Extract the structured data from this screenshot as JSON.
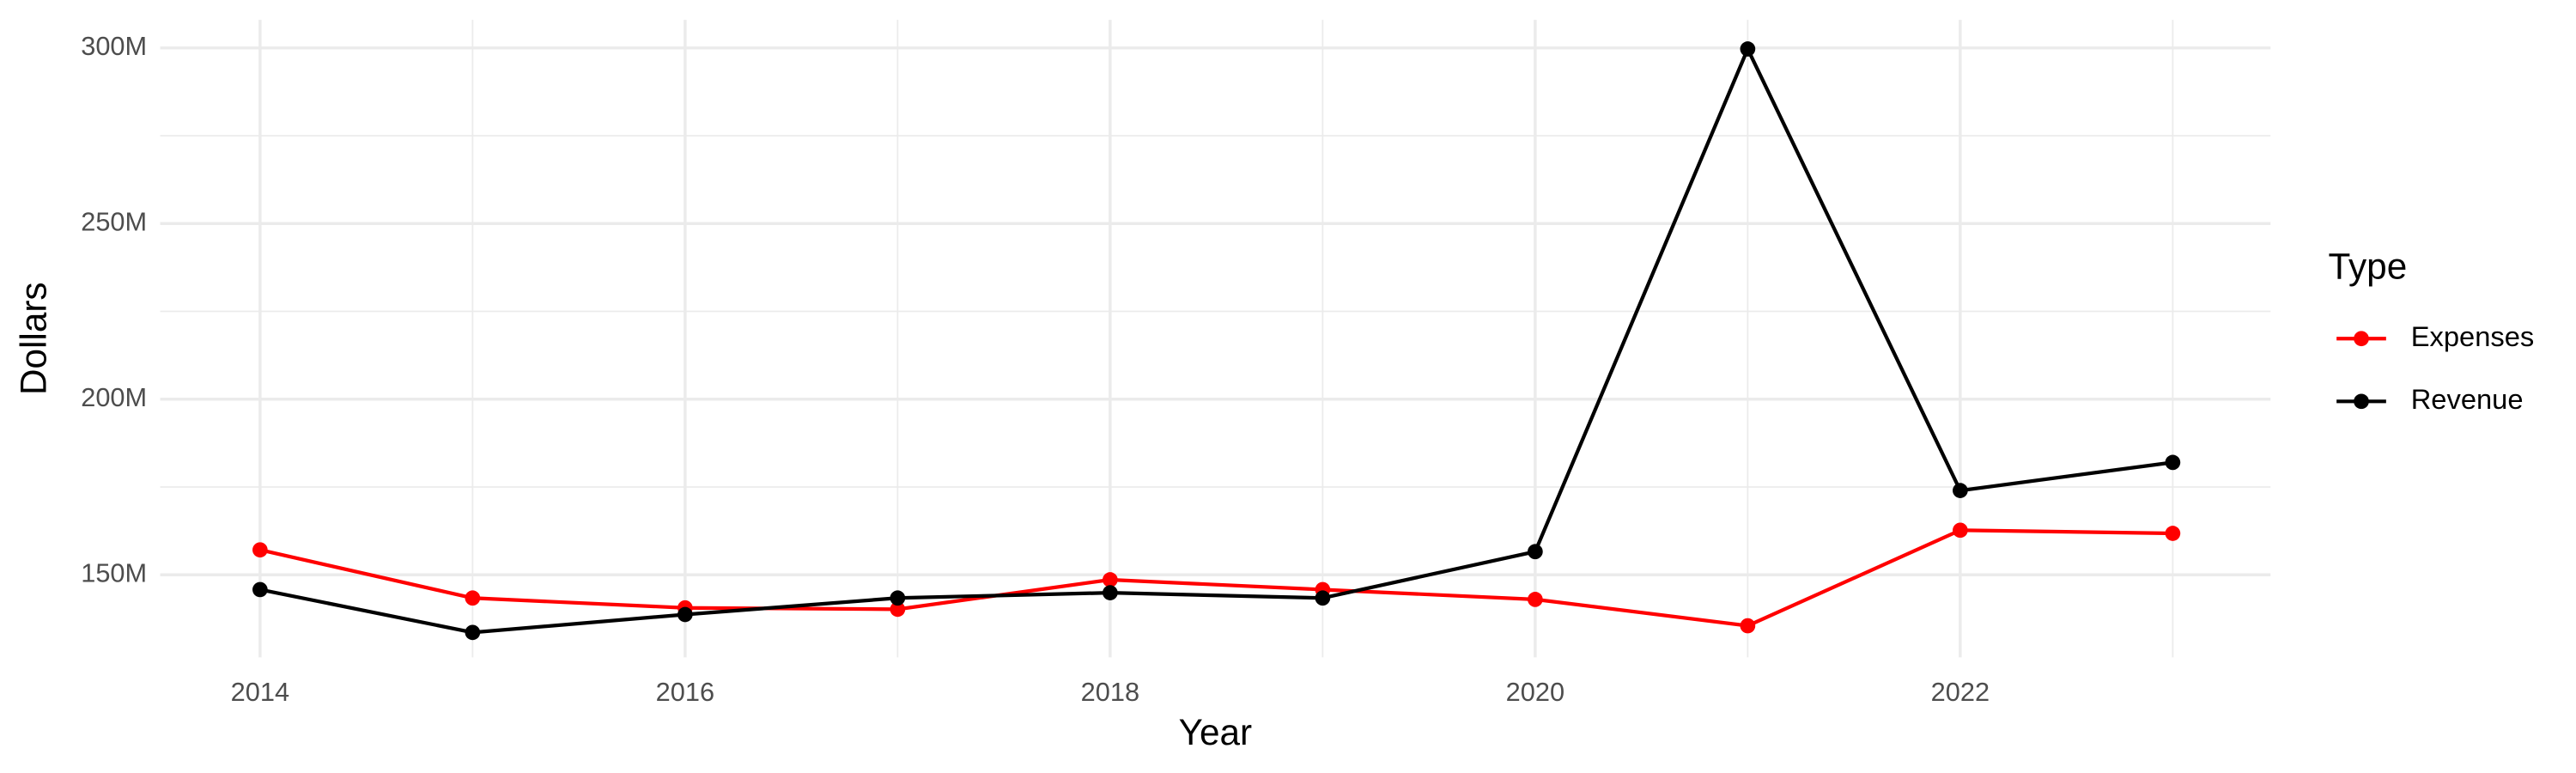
{
  "chart_data": {
    "type": "line",
    "x_label": "Year",
    "y_label": "Dollars",
    "legend_title": "Type",
    "legend_position": "right",
    "grid": true,
    "x": [
      2014,
      2015,
      2016,
      2017,
      2018,
      2019,
      2020,
      2021,
      2022,
      2023
    ],
    "series": [
      {
        "name": "Expenses",
        "color": "#ff0000",
        "values": [
          157100000,
          143400000,
          140600000,
          140200000,
          148600000,
          145800000,
          143000000,
          135500000,
          162700000,
          161800000
        ]
      },
      {
        "name": "Revenue",
        "color": "#000000",
        "values": [
          145800000,
          133600000,
          138700000,
          143400000,
          144900000,
          143400000,
          156600000,
          299700000,
          174000000,
          182000000
        ]
      }
    ],
    "xlim": [
      2013.53,
      2023.46
    ],
    "ylim": [
      126500000,
      308000000
    ],
    "xticks": [
      2014,
      2016,
      2018,
      2020,
      2022
    ],
    "yticks": [
      {
        "value": 150000000,
        "label": "150M"
      },
      {
        "value": 200000000,
        "label": "200M"
      },
      {
        "value": 250000000,
        "label": "250M"
      },
      {
        "value": 300000000,
        "label": "300M"
      }
    ],
    "minor_xticks": [
      2015,
      2017,
      2019,
      2021,
      2023
    ],
    "minor_yticks": [
      175000000,
      225000000,
      275000000
    ]
  }
}
